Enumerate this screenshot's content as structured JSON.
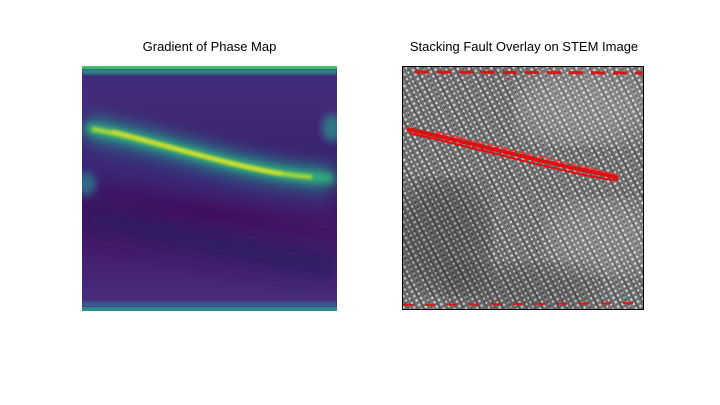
{
  "figure": {
    "left_title": "Gradient of Phase Map",
    "right_title": "Stacking Fault Overlay on STEM Image"
  },
  "colors": {
    "viridis_dark": "#440154",
    "viridis_mid": "#21908d",
    "viridis_bright": "#fde725",
    "fault_overlay": "#e01010",
    "stem_gray": "#808080"
  }
}
